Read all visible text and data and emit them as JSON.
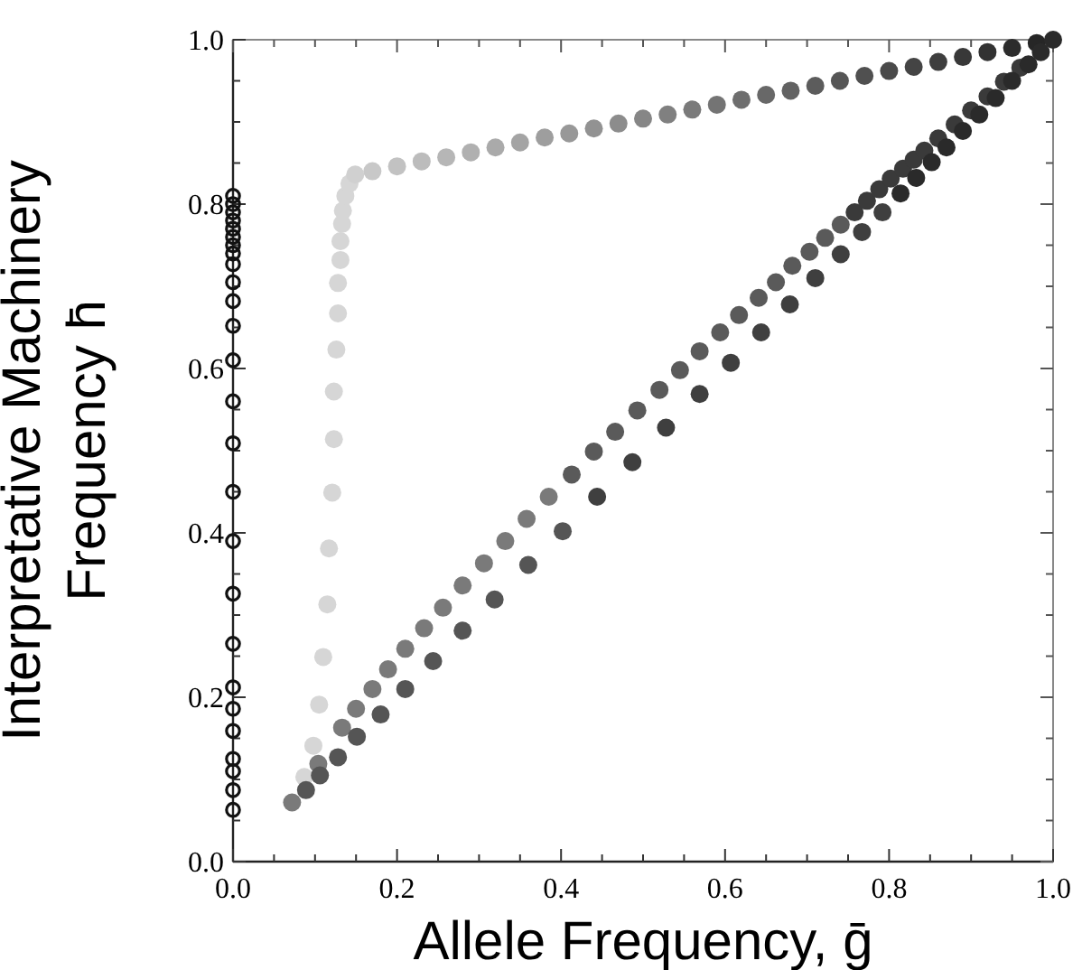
{
  "chart_data": {
    "type": "scatter",
    "xlabel": "Allele Frequency, ḡ",
    "ylabel": "Interpretative Machinery Frequency h̄",
    "xlim": [
      0,
      1
    ],
    "ylim": [
      0,
      1
    ],
    "xticks": [
      {
        "value": 0,
        "label": "0.0"
      },
      {
        "value": 0.05,
        "label": null
      },
      {
        "value": 0.1,
        "label": null
      },
      {
        "value": 0.15,
        "label": null
      },
      {
        "value": 0.2,
        "label": "0.2"
      },
      {
        "value": 0.25,
        "label": null
      },
      {
        "value": 0.3,
        "label": null
      },
      {
        "value": 0.35,
        "label": null
      },
      {
        "value": 0.4,
        "label": "0.4"
      },
      {
        "value": 0.45,
        "label": null
      },
      {
        "value": 0.5,
        "label": null
      },
      {
        "value": 0.55,
        "label": null
      },
      {
        "value": 0.6,
        "label": "0.6"
      },
      {
        "value": 0.65,
        "label": null
      },
      {
        "value": 0.7,
        "label": null
      },
      {
        "value": 0.75,
        "label": null
      },
      {
        "value": 0.8,
        "label": "0.8"
      },
      {
        "value": 0.85,
        "label": null
      },
      {
        "value": 0.9,
        "label": null
      },
      {
        "value": 0.95,
        "label": null
      },
      {
        "value": 1,
        "label": "1.0"
      }
    ],
    "yticks": [
      {
        "value": 0,
        "label": "0.0"
      },
      {
        "value": 0.05,
        "label": null
      },
      {
        "value": 0.1,
        "label": null
      },
      {
        "value": 0.15,
        "label": null
      },
      {
        "value": 0.2,
        "label": "0.2"
      },
      {
        "value": 0.25,
        "label": null
      },
      {
        "value": 0.3,
        "label": null
      },
      {
        "value": 0.35,
        "label": null
      },
      {
        "value": 0.4,
        "label": "0.4"
      },
      {
        "value": 0.45,
        "label": null
      },
      {
        "value": 0.5,
        "label": null
      },
      {
        "value": 0.55,
        "label": null
      },
      {
        "value": 0.6,
        "label": "0.6"
      },
      {
        "value": 0.65,
        "label": null
      },
      {
        "value": 0.7,
        "label": null
      },
      {
        "value": 0.75,
        "label": null
      },
      {
        "value": 0.8,
        "label": "0.8"
      },
      {
        "value": 0.85,
        "label": null
      },
      {
        "value": 0.9,
        "label": null
      },
      {
        "value": 0.95,
        "label": null
      },
      {
        "value": 1,
        "label": "1.0"
      }
    ],
    "marker": "circle",
    "series": [
      {
        "color": "#111111",
        "x": [
          0,
          0,
          0,
          0,
          0,
          0,
          0,
          0,
          0,
          0,
          0,
          0,
          0,
          0,
          0,
          0,
          0,
          0,
          0,
          0,
          0,
          0,
          0,
          0,
          0,
          0
        ],
        "values": [
          0.063,
          0.087,
          0.11,
          0.125,
          0.159,
          0.186,
          0.212,
          0.265,
          0.326,
          0.39,
          0.45,
          0.509,
          0.56,
          0.61,
          0.652,
          0.682,
          0.705,
          0.727,
          0.74,
          0.75,
          0.76,
          0.77,
          0.78,
          0.79,
          0.8,
          0.81
        ]
      },
      {
        "x": [
          0.087,
          0.098,
          0.105,
          0.11,
          0.115,
          0.117,
          0.121,
          0.123,
          0.123,
          0.126,
          0.128,
          0.128,
          0.131,
          0.131,
          0.133,
          0.134,
          0.137,
          0.142,
          0.149,
          0.17,
          0.2,
          0.23,
          0.26,
          0.29,
          0.32,
          0.35,
          0.38,
          0.41,
          0.44,
          0.47,
          0.5,
          0.53,
          0.56,
          0.59,
          0.62,
          0.65,
          0.68,
          0.71,
          0.74,
          0.77,
          0.8,
          0.83,
          0.86,
          0.89,
          0.92,
          0.95,
          0.98
        ],
        "values": [
          0.103,
          0.141,
          0.191,
          0.249,
          0.313,
          0.381,
          0.449,
          0.514,
          0.572,
          0.623,
          0.667,
          0.704,
          0.732,
          0.755,
          0.776,
          0.792,
          0.81,
          0.825,
          0.836,
          0.84,
          0.846,
          0.852,
          0.857,
          0.863,
          0.869,
          0.875,
          0.881,
          0.886,
          0.892,
          0.898,
          0.904,
          0.909,
          0.915,
          0.921,
          0.927,
          0.933,
          0.938,
          0.944,
          0.95,
          0.956,
          0.962,
          0.967,
          0.973,
          0.979,
          0.985,
          0.99,
          0.996
        ],
        "colors": [
          "#d6d6d6",
          "#d6d6d6",
          "#d6d6d6",
          "#d6d6d6",
          "#d6d6d6",
          "#d6d6d6",
          "#d6d6d6",
          "#d6d6d6",
          "#d6d6d6",
          "#d6d6d6",
          "#d6d6d6",
          "#d6d6d6",
          "#d6d6d6",
          "#d6d6d6",
          "#d6d6d6",
          "#d6d6d6",
          "#d6d6d6",
          "#d6d6d6",
          "#d0d0d0",
          "#c8c8c8",
          "#c2c2c2",
          "#bcbcbc",
          "#b6b6b6",
          "#b0b0b0",
          "#aaaaaa",
          "#a4a4a4",
          "#9e9e9e",
          "#989898",
          "#929292",
          "#8c8c8c",
          "#868686",
          "#808080",
          "#7a7a7a",
          "#747474",
          "#6e6e6e",
          "#686868",
          "#626262",
          "#5c5c5c",
          "#565656",
          "#505050",
          "#4a4a4a",
          "#444444",
          "#3e3e3e",
          "#383838",
          "#323232",
          "#2c2c2c",
          "#262626"
        ]
      },
      {
        "x": [
          0.072,
          0.104,
          0.133,
          0.15,
          0.17,
          0.189,
          0.21,
          0.233,
          0.256,
          0.28,
          0.306,
          0.332,
          0.358,
          0.385,
          0.413,
          0.44,
          0.466,
          0.493,
          0.52,
          0.545,
          0.569,
          0.594,
          0.617,
          0.641,
          0.662,
          0.682,
          0.703,
          0.722,
          0.741,
          0.758,
          0.773,
          0.788,
          0.802,
          0.817,
          0.83,
          0.843,
          0.86,
          0.88,
          0.9,
          0.92,
          0.94,
          0.96
        ],
        "values": [
          0.072,
          0.119,
          0.163,
          0.186,
          0.21,
          0.234,
          0.259,
          0.284,
          0.309,
          0.336,
          0.363,
          0.39,
          0.417,
          0.444,
          0.471,
          0.499,
          0.523,
          0.549,
          0.574,
          0.598,
          0.621,
          0.644,
          0.665,
          0.686,
          0.705,
          0.725,
          0.742,
          0.759,
          0.775,
          0.79,
          0.804,
          0.818,
          0.831,
          0.843,
          0.854,
          0.865,
          0.88,
          0.897,
          0.914,
          0.931,
          0.949,
          0.966
        ],
        "colors": [
          "#7a7a7a",
          "#7a7a7a",
          "#7a7a7a",
          "#7a7a7a",
          "#7a7a7a",
          "#7a7a7a",
          "#7a7a7a",
          "#7a7a7a",
          "#7a7a7a",
          "#7a7a7a",
          "#7a7a7a",
          "#7a7a7a",
          "#7a7a7a",
          "#7a7a7a",
          "#5a5a5a",
          "#5a5a5a",
          "#5a5a5a",
          "#5a5a5a",
          "#5a5a5a",
          "#5a5a5a",
          "#5a5a5a",
          "#5a5a5a",
          "#5a5a5a",
          "#5a5a5a",
          "#5a5a5a",
          "#5a5a5a",
          "#5a5a5a",
          "#5a5a5a",
          "#5a5a5a",
          "#3a3a3a",
          "#3a3a3a",
          "#3a3a3a",
          "#3a3a3a",
          "#3a3a3a",
          "#3a3a3a",
          "#3a3a3a",
          "#3a3a3a",
          "#3a3a3a",
          "#3a3a3a",
          "#3a3a3a",
          "#3a3a3a",
          "#3a3a3a"
        ]
      },
      {
        "x": [
          0.089,
          0.106,
          0.128,
          0.151,
          0.18,
          0.21,
          0.244,
          0.28,
          0.319,
          0.36,
          0.402,
          0.444,
          0.487,
          0.528,
          0.569,
          0.607,
          0.644,
          0.679,
          0.71,
          0.741,
          0.767,
          0.792,
          0.814,
          0.833,
          0.852,
          0.87,
          0.89,
          0.91,
          0.93,
          0.95,
          0.97,
          0.985,
          1.0
        ],
        "values": [
          0.087,
          0.105,
          0.127,
          0.152,
          0.179,
          0.21,
          0.244,
          0.281,
          0.319,
          0.361,
          0.402,
          0.444,
          0.486,
          0.528,
          0.569,
          0.607,
          0.644,
          0.678,
          0.71,
          0.739,
          0.766,
          0.79,
          0.813,
          0.832,
          0.851,
          0.869,
          0.889,
          0.909,
          0.929,
          0.95,
          0.97,
          0.985,
          1.0
        ],
        "colors": [
          "#555555",
          "#555555",
          "#555555",
          "#555555",
          "#555555",
          "#555555",
          "#555555",
          "#555555",
          "#555555",
          "#555555",
          "#555555",
          "#3f3f3f",
          "#3f3f3f",
          "#3f3f3f",
          "#3f3f3f",
          "#3f3f3f",
          "#3f3f3f",
          "#3f3f3f",
          "#3f3f3f",
          "#3f3f3f",
          "#3f3f3f",
          "#3f3f3f",
          "#2a2a2a",
          "#2a2a2a",
          "#2a2a2a",
          "#2a2a2a",
          "#2a2a2a",
          "#2a2a2a",
          "#2a2a2a",
          "#2a2a2a",
          "#2a2a2a",
          "#2a2a2a",
          "#2a2a2a"
        ]
      }
    ]
  }
}
